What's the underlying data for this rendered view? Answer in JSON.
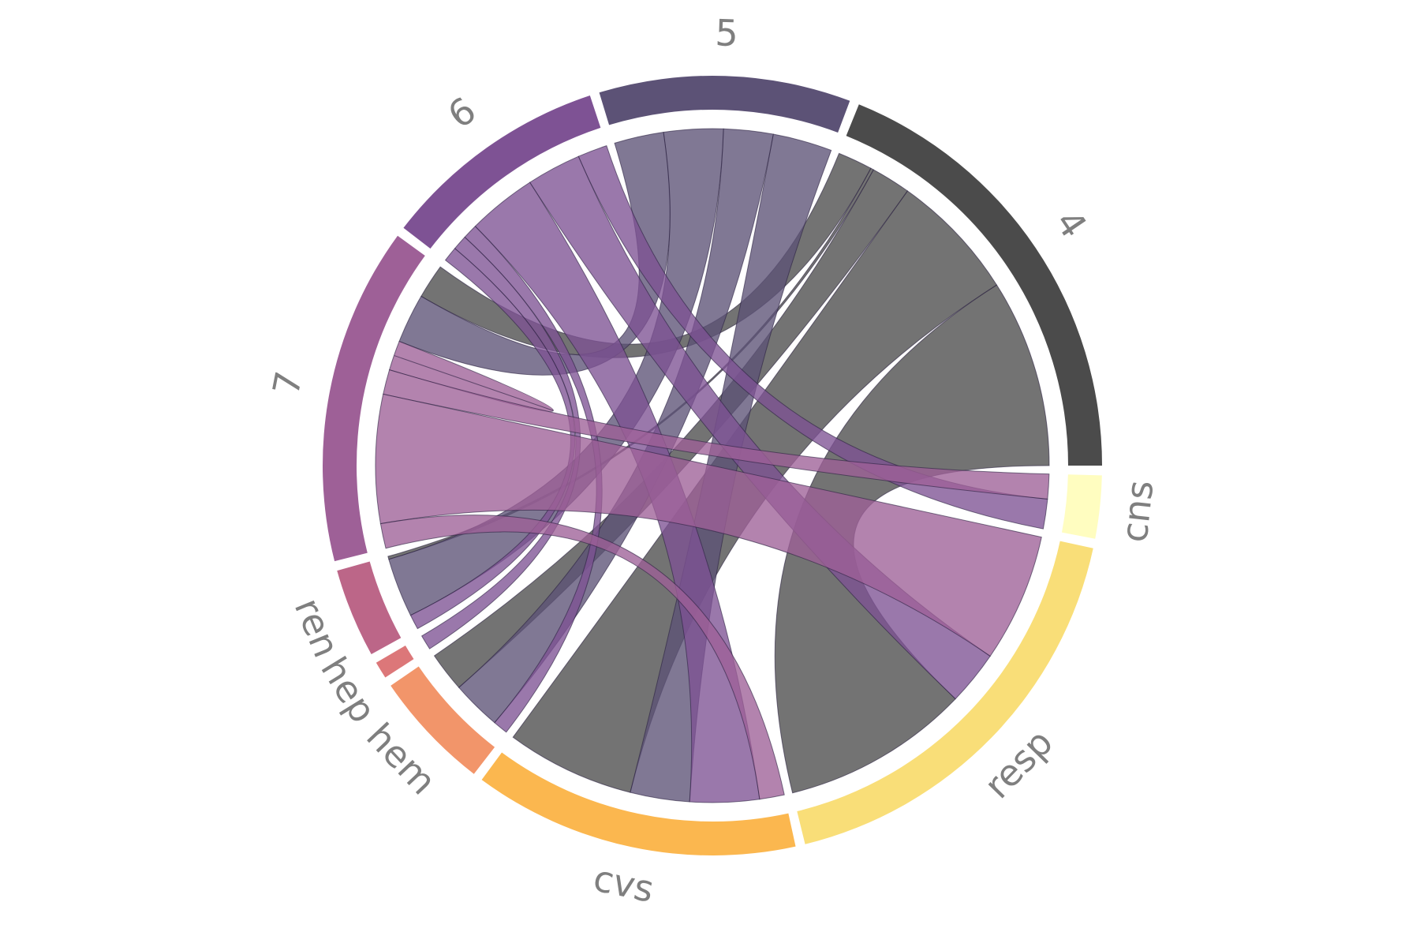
{
  "chart_data": {
    "type": "chord",
    "nodes": [
      {
        "name": "4",
        "color": "#4b4b4b"
      },
      {
        "name": "5",
        "color": "#5c5276"
      },
      {
        "name": "6",
        "color": "#7e5294"
      },
      {
        "name": "7",
        "color": "#9e6097"
      },
      {
        "name": "ren",
        "color": "#bc6688"
      },
      {
        "name": "hep",
        "color": "#dc7779"
      },
      {
        "name": "hem",
        "color": "#f2956a"
      },
      {
        "name": "cvs",
        "color": "#fbb74f"
      },
      {
        "name": "resp",
        "color": "#f9de78"
      },
      {
        "name": "cns",
        "color": "#fffdc0"
      }
    ],
    "links": [
      {
        "source": "4",
        "target": "resp",
        "value": 19
      },
      {
        "source": "4",
        "target": "cvs",
        "value": 13
      },
      {
        "source": "4",
        "target": "hem",
        "value": 4
      },
      {
        "source": "4",
        "target": "ren",
        "value": 0.3
      },
      {
        "source": "4",
        "target": "7",
        "value": 3.5
      },
      {
        "source": "5",
        "target": "cvs",
        "value": 6
      },
      {
        "source": "5",
        "target": "hem",
        "value": 5
      },
      {
        "source": "5",
        "target": "ren",
        "value": 6
      },
      {
        "source": "5",
        "target": "7",
        "value": 5
      },
      {
        "source": "6",
        "target": "cns",
        "value": 3
      },
      {
        "source": "6",
        "target": "resp",
        "value": 5.5
      },
      {
        "source": "6",
        "target": "cvs",
        "value": 7
      },
      {
        "source": "6",
        "target": "hem",
        "value": 1.5
      },
      {
        "source": "6",
        "target": "hep",
        "value": 1.5
      },
      {
        "source": "6",
        "target": "ren",
        "value": 1.5
      },
      {
        "source": "7",
        "target": "7",
        "value": 1.5
      },
      {
        "source": "7",
        "target": "cns",
        "value": 2.5
      },
      {
        "source": "7",
        "target": "resp",
        "value": 13
      },
      {
        "source": "7",
        "target": "cvs",
        "value": 2.5
      }
    ]
  }
}
